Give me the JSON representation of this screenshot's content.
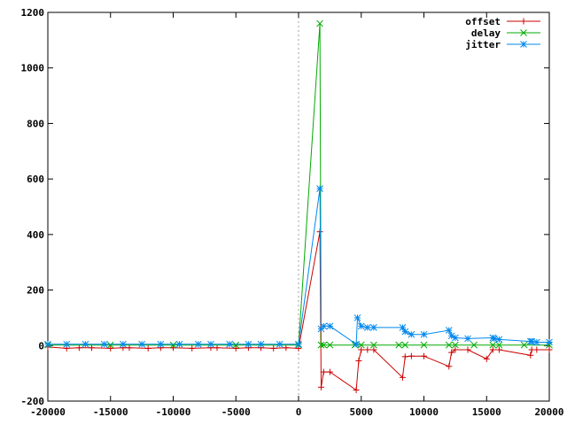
{
  "chart_data": {
    "type": "line",
    "title": "",
    "xlabel": "",
    "ylabel": "",
    "xlim": [
      -20000,
      20000
    ],
    "ylim": [
      -200,
      1200
    ],
    "x_ticks": [
      -20000,
      -15000,
      -10000,
      -5000,
      0,
      5000,
      10000,
      15000,
      20000
    ],
    "y_ticks": [
      -200,
      0,
      200,
      400,
      600,
      800,
      1000,
      1200
    ],
    "grid": false,
    "zero_line": "dotted vertical at x = 0",
    "legend_position": "top-right",
    "series": [
      {
        "name": "offset",
        "color": "#cc0000",
        "marker": "plus",
        "x": [
          -20000,
          -18500,
          -17500,
          -16500,
          -15000,
          -14000,
          -13500,
          -12000,
          -11000,
          -10000,
          -8500,
          -7000,
          -6500,
          -5000,
          -4000,
          -3000,
          -2000,
          -1000,
          0,
          1700,
          1800,
          2000,
          2500,
          4600,
          4800,
          5000,
          5500,
          6000,
          8300,
          8500,
          9000,
          10000,
          12000,
          12200,
          12500,
          13500,
          15000,
          15500,
          16000,
          18500,
          18600,
          19000,
          20000
        ],
        "y": [
          -5,
          -10,
          -8,
          -8,
          -10,
          -8,
          -8,
          -10,
          -8,
          -8,
          -10,
          -8,
          -8,
          -10,
          -8,
          -8,
          -10,
          -8,
          -10,
          410,
          -150,
          -95,
          -95,
          -160,
          -55,
          -15,
          -15,
          -15,
          -115,
          -40,
          -38,
          -38,
          -75,
          -25,
          -15,
          -15,
          -48,
          -15,
          -15,
          -35,
          -15,
          -15,
          -15
        ]
      },
      {
        "name": "delay",
        "color": "#00aa00",
        "marker": "cross",
        "x": [
          -20000,
          -15000,
          -10000,
          -5000,
          0,
          1700,
          1800,
          2000,
          2500,
          4500,
          5000,
          6000,
          8000,
          8500,
          10000,
          12000,
          12500,
          14000,
          15500,
          16000,
          18000,
          20000
        ],
        "y": [
          2,
          2,
          2,
          2,
          2,
          1160,
          2,
          2,
          2,
          2,
          2,
          2,
          2,
          2,
          2,
          2,
          2,
          2,
          2,
          2,
          2,
          2
        ]
      },
      {
        "name": "jitter",
        "color": "#0088ee",
        "marker": "star",
        "x": [
          -20000,
          -18500,
          -17000,
          -15500,
          -14000,
          -12500,
          -11000,
          -9500,
          -8000,
          -7000,
          -5500,
          -4000,
          -3000,
          -1500,
          0,
          1700,
          1800,
          2000,
          2500,
          4600,
          4700,
          5000,
          5500,
          6000,
          8300,
          8500,
          9000,
          10000,
          12000,
          12200,
          12500,
          13500,
          15500,
          15600,
          16000,
          18500,
          18600,
          19000,
          20000
        ],
        "y": [
          5,
          5,
          5,
          5,
          5,
          5,
          5,
          5,
          5,
          5,
          5,
          5,
          5,
          5,
          5,
          565,
          60,
          70,
          70,
          5,
          100,
          70,
          65,
          65,
          65,
          50,
          40,
          40,
          55,
          35,
          28,
          25,
          28,
          25,
          22,
          15,
          15,
          12,
          12
        ]
      }
    ]
  }
}
